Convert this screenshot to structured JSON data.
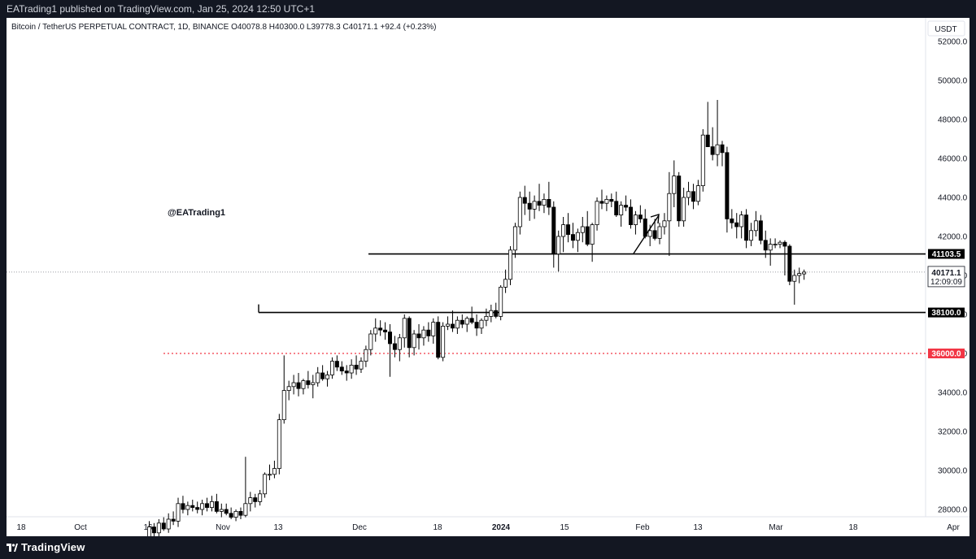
{
  "header": {
    "publish_line": "EATrading1 published on TradingView.com, Jan 25, 2024 12:50 UTC+1"
  },
  "footer": {
    "brand": "TradingView"
  },
  "chart_data": {
    "type": "candlestick",
    "symbol_line": "Bitcoin / TetherUS PERPETUAL CONTRACT, 1D, BINANCE",
    "ohlc": {
      "open": "O40078.8",
      "high": "H40300.0",
      "low": "L39778.3",
      "close": "C40171.1",
      "change": "+92.4 (+0.23%)"
    },
    "currency": "USDT",
    "watermark": "@EATrading1",
    "ylim": [
      27000,
      53000
    ],
    "y_ticks": [
      "52000.0",
      "50000.0",
      "48000.0",
      "46000.0",
      "44000.0",
      "42000.0",
      "40000.0",
      "38000.0",
      "36000.0",
      "34000.0",
      "32000.0",
      "30000.0",
      "28000.0"
    ],
    "x_ticks": [
      "18",
      "Oct",
      "16",
      "Nov",
      "13",
      "Dec",
      "18",
      "2024",
      "15",
      "Feb",
      "13",
      "Mar",
      "18",
      "Apr"
    ],
    "last_price": {
      "value": "40171.1",
      "countdown": "12:09:09"
    },
    "levels": [
      {
        "value": 41103.5,
        "label": "41103.5",
        "color": "#000000",
        "style": "solid"
      },
      {
        "value": 38100.0,
        "label": "38100.0",
        "color": "#000000",
        "style": "solid"
      },
      {
        "value": 36000.0,
        "label": "36000.0",
        "color": "#f23645",
        "style": "dotted"
      }
    ],
    "candles": [
      [
        26500,
        27400,
        26300,
        27100
      ],
      [
        27100,
        27300,
        26600,
        26800
      ],
      [
        26800,
        27500,
        26600,
        27300
      ],
      [
        27300,
        27600,
        26900,
        27000
      ],
      [
        27000,
        27800,
        26800,
        27500
      ],
      [
        27500,
        27900,
        27200,
        27400
      ],
      [
        27400,
        28600,
        27100,
        28300
      ],
      [
        28300,
        28700,
        27800,
        28000
      ],
      [
        28000,
        28400,
        27700,
        28200
      ],
      [
        28200,
        28500,
        27900,
        28100
      ],
      [
        28100,
        28400,
        27800,
        28000
      ],
      [
        28000,
        28500,
        27700,
        28300
      ],
      [
        28300,
        28600,
        27900,
        28100
      ],
      [
        28100,
        28700,
        27900,
        28400
      ],
      [
        28400,
        28800,
        27800,
        27900
      ],
      [
        27900,
        28300,
        27600,
        28000
      ],
      [
        28000,
        28300,
        27700,
        27800
      ],
      [
        27800,
        28100,
        27500,
        27600
      ],
      [
        27600,
        28000,
        27400,
        27900
      ],
      [
        27900,
        28100,
        27500,
        27700
      ],
      [
        27700,
        30700,
        27600,
        28300
      ],
      [
        28300,
        28900,
        27900,
        28600
      ],
      [
        28600,
        28800,
        28100,
        28400
      ],
      [
        28400,
        29000,
        28200,
        28800
      ],
      [
        28800,
        29900,
        28600,
        29800
      ],
      [
        29800,
        30300,
        29500,
        29800
      ],
      [
        29800,
        30500,
        29600,
        30100
      ],
      [
        30100,
        32900,
        29800,
        32600
      ],
      [
        32600,
        35900,
        32400,
        34100
      ],
      [
        34100,
        34600,
        33600,
        34300
      ],
      [
        34300,
        34900,
        33900,
        34500
      ],
      [
        34500,
        35000,
        33800,
        34200
      ],
      [
        34200,
        34700,
        33900,
        34600
      ],
      [
        34600,
        35100,
        34200,
        34400
      ],
      [
        34400,
        34900,
        33700,
        34500
      ],
      [
        34500,
        35300,
        34300,
        35000
      ],
      [
        35000,
        35400,
        34600,
        34700
      ],
      [
        34700,
        35100,
        34300,
        34900
      ],
      [
        34900,
        35800,
        34700,
        35600
      ],
      [
        35600,
        35900,
        35100,
        35300
      ],
      [
        35300,
        35600,
        34900,
        35100
      ],
      [
        35100,
        35400,
        34600,
        35000
      ],
      [
        35000,
        35700,
        34700,
        35400
      ],
      [
        35400,
        35900,
        34900,
        35200
      ],
      [
        35200,
        35800,
        35000,
        35600
      ],
      [
        35600,
        36400,
        35300,
        36200
      ],
      [
        36200,
        37200,
        35900,
        37000
      ],
      [
        37000,
        37800,
        36600,
        37300
      ],
      [
        37300,
        37700,
        36900,
        37200
      ],
      [
        37200,
        37600,
        36700,
        37100
      ],
      [
        37100,
        37500,
        34800,
        36500
      ],
      [
        36500,
        36900,
        35800,
        36200
      ],
      [
        36200,
        37000,
        35600,
        36800
      ],
      [
        36800,
        38000,
        36300,
        37800
      ],
      [
        37800,
        37900,
        35800,
        36300
      ],
      [
        36300,
        37200,
        35900,
        37000
      ],
      [
        37000,
        37500,
        36200,
        36800
      ],
      [
        36800,
        37400,
        36400,
        37200
      ],
      [
        37200,
        37600,
        36600,
        36900
      ],
      [
        36900,
        37800,
        36500,
        37600
      ],
      [
        37600,
        37900,
        35700,
        35800
      ],
      [
        35800,
        37600,
        35600,
        37400
      ],
      [
        37400,
        37900,
        37200,
        37500
      ],
      [
        37500,
        38200,
        37100,
        37300
      ],
      [
        37300,
        37900,
        37000,
        37700
      ],
      [
        37700,
        38000,
        37300,
        37500
      ],
      [
        37500,
        37900,
        37100,
        37800
      ],
      [
        37800,
        38400,
        37500,
        37600
      ],
      [
        37600,
        38000,
        36900,
        37300
      ],
      [
        37300,
        37800,
        37000,
        37700
      ],
      [
        37700,
        38300,
        37400,
        37900
      ],
      [
        37900,
        38500,
        37600,
        38200
      ],
      [
        38200,
        38600,
        37800,
        37900
      ],
      [
        37900,
        39500,
        37700,
        39400
      ],
      [
        39400,
        40300,
        39100,
        39800
      ],
      [
        39800,
        41500,
        39500,
        41300
      ],
      [
        41300,
        42700,
        40900,
        42500
      ],
      [
        42500,
        44300,
        42100,
        44000
      ],
      [
        44000,
        44600,
        43100,
        43700
      ],
      [
        43700,
        44300,
        42800,
        43400
      ],
      [
        43400,
        44100,
        42900,
        43800
      ],
      [
        43800,
        44700,
        43300,
        43600
      ],
      [
        43600,
        44200,
        43200,
        43900
      ],
      [
        43900,
        44800,
        43100,
        43500
      ],
      [
        43500,
        43800,
        40400,
        41100
      ],
      [
        41100,
        42300,
        40200,
        42000
      ],
      [
        42000,
        43000,
        41200,
        42600
      ],
      [
        42600,
        43200,
        41700,
        42100
      ],
      [
        42100,
        42700,
        41400,
        41800
      ],
      [
        41800,
        42400,
        41200,
        42200
      ],
      [
        42200,
        43000,
        41700,
        42500
      ],
      [
        42500,
        43300,
        41500,
        41600
      ],
      [
        41600,
        42700,
        40700,
        42600
      ],
      [
        42600,
        44000,
        42300,
        43800
      ],
      [
        43800,
        44400,
        43400,
        43700
      ],
      [
        43700,
        44100,
        43300,
        43900
      ],
      [
        43900,
        44200,
        43500,
        43800
      ],
      [
        43800,
        44300,
        43000,
        43100
      ],
      [
        43100,
        43800,
        42500,
        43600
      ],
      [
        43600,
        44100,
        43300,
        43500
      ],
      [
        43500,
        43900,
        42400,
        42600
      ],
      [
        42600,
        43300,
        42100,
        43100
      ],
      [
        43100,
        43600,
        42700,
        42900
      ],
      [
        42900,
        43400,
        41900,
        42000
      ],
      [
        42000,
        42600,
        41500,
        42300
      ],
      [
        42300,
        42900,
        41800,
        41900
      ],
      [
        41900,
        42700,
        41600,
        42500
      ],
      [
        42500,
        43200,
        42100,
        42800
      ],
      [
        42800,
        45300,
        41000,
        44200
      ],
      [
        44200,
        45900,
        43500,
        45100
      ],
      [
        45100,
        45300,
        42500,
        42800
      ],
      [
        42800,
        44500,
        42500,
        44000
      ],
      [
        44000,
        44800,
        43600,
        44300
      ],
      [
        44300,
        44700,
        43400,
        43800
      ],
      [
        43800,
        44900,
        43600,
        44600
      ],
      [
        44600,
        47500,
        44300,
        47200
      ],
      [
        47200,
        48900,
        46800,
        46600
      ],
      [
        46600,
        47600,
        45900,
        46200
      ],
      [
        46200,
        49000,
        45600,
        46700
      ],
      [
        46700,
        46900,
        45600,
        46300
      ],
      [
        46300,
        46600,
        42200,
        42900
      ],
      [
        42900,
        43400,
        42400,
        42700
      ],
      [
        42700,
        43200,
        41900,
        42500
      ],
      [
        42500,
        43300,
        41900,
        43100
      ],
      [
        43100,
        43400,
        41400,
        41800
      ],
      [
        41800,
        42700,
        41500,
        42300
      ],
      [
        42300,
        43300,
        42000,
        42800
      ],
      [
        42800,
        43100,
        41600,
        41800
      ],
      [
        41800,
        42300,
        40900,
        41300
      ],
      [
        41300,
        41900,
        40500,
        41600
      ],
      [
        41600,
        41900,
        41400,
        41600
      ],
      [
        41600,
        41800,
        41400,
        41700
      ],
      [
        41700,
        41800,
        40000,
        41500
      ],
      [
        41500,
        41600,
        39500,
        39700
      ],
      [
        39700,
        40300,
        38500,
        40000
      ],
      [
        40000,
        40400,
        39600,
        40100
      ],
      [
        40078.8,
        40300,
        39778.3,
        40171.1
      ]
    ]
  }
}
